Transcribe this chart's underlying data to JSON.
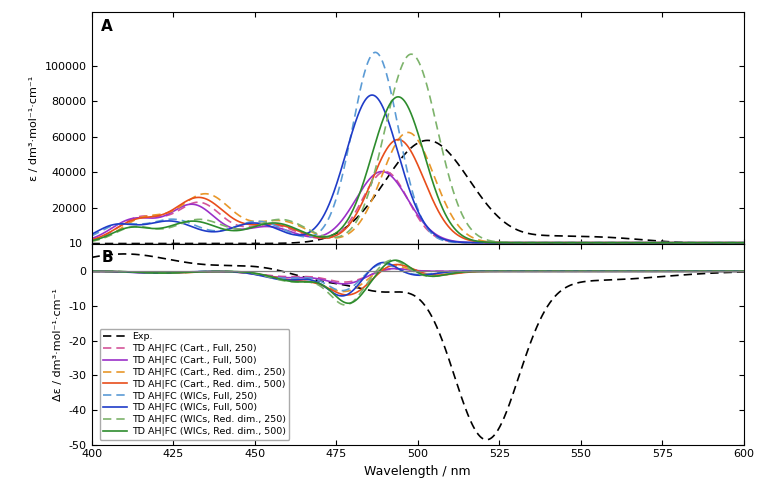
{
  "x_range": [
    400,
    600
  ],
  "opa_ylim": [
    10,
    130000
  ],
  "ecd_ylim": [
    -50,
    8
  ],
  "opa_yticks": [
    20000,
    40000,
    60000,
    80000,
    100000
  ],
  "opa_ytick_labels": [
    "20000",
    "40000",
    "60000",
    "80000",
    "100000"
  ],
  "ecd_yticks": [
    -50,
    -40,
    -30,
    -20,
    -10,
    0
  ],
  "xlabel": "Wavelength / nm",
  "opa_ylabel": "ε / dm³·mol⁻¹·cm⁻¹",
  "ecd_ylabel": "Δε / dm³·mol⁻¹·cm⁻¹",
  "xticks": [
    400,
    425,
    450,
    475,
    500,
    525,
    550,
    575,
    600
  ],
  "panel_A_label": "A",
  "panel_B_label": "B",
  "colors": {
    "exp": "#000000",
    "cart_full_250": "#d4559a",
    "cart_full_500": "#9b30c8",
    "cart_red_250": "#e8972a",
    "cart_red_500": "#e84e1b",
    "wics_full_250": "#5b9bd5",
    "wics_full_500": "#1f3cc8",
    "wics_red_250": "#7db36b",
    "wics_red_500": "#2d8c2d"
  },
  "legend_entries": [
    {
      "label": "Exp.",
      "color": "#000000",
      "ls": "dashed"
    },
    {
      "label": "TD AH|FC (Cart., Full, 250)",
      "color": "#d4559a",
      "ls": "dashed"
    },
    {
      "label": "TD AH|FC (Cart., Full, 500)",
      "color": "#9b30c8",
      "ls": "solid"
    },
    {
      "label": "TD AH|FC (Cart., Red. dim., 250)",
      "color": "#e8972a",
      "ls": "dashed"
    },
    {
      "label": "TD AH|FC (Cart., Red. dim., 500)",
      "color": "#e84e1b",
      "ls": "solid"
    },
    {
      "label": "TD AH|FC (WICs, Full, 250)",
      "color": "#5b9bd5",
      "ls": "dashed"
    },
    {
      "label": "TD AH|FC (WICs, Full, 500)",
      "color": "#1f3cc8",
      "ls": "solid"
    },
    {
      "label": "TD AH|FC (WICs, Red. dim., 250)",
      "color": "#7db36b",
      "ls": "dashed"
    },
    {
      "label": "TD AH|FC (WICs, Red. dim., 500)",
      "color": "#2d8c2d",
      "ls": "solid"
    }
  ]
}
